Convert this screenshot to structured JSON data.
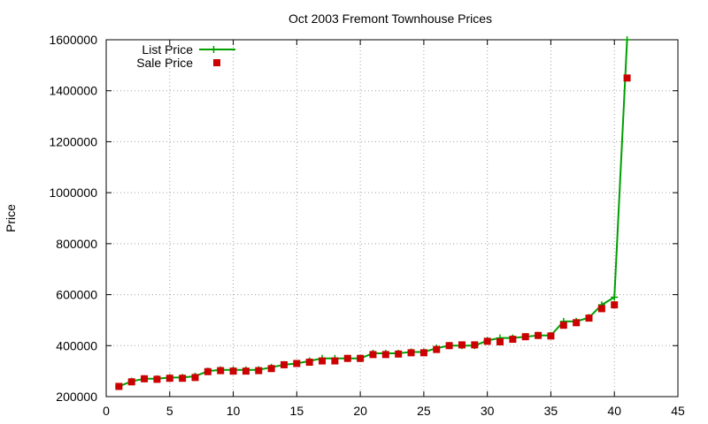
{
  "chart_data": {
    "type": "line",
    "title": "Oct 2003 Fremont Townhouse Prices",
    "xlabel": "",
    "ylabel": "Price",
    "xlim": [
      0,
      45
    ],
    "ylim": [
      200000,
      1600000
    ],
    "xticks": [
      0,
      5,
      10,
      15,
      20,
      25,
      30,
      35,
      40,
      45
    ],
    "yticks": [
      200000,
      400000,
      600000,
      800000,
      1000000,
      1200000,
      1400000,
      1600000
    ],
    "grid": true,
    "legend_position": "top-left",
    "x": [
      1,
      2,
      3,
      4,
      5,
      6,
      7,
      8,
      9,
      10,
      11,
      12,
      13,
      14,
      15,
      16,
      17,
      18,
      19,
      20,
      21,
      22,
      23,
      24,
      25,
      26,
      27,
      28,
      29,
      30,
      31,
      32,
      33,
      34,
      35,
      36,
      37,
      38,
      39,
      40,
      41
    ],
    "series": [
      {
        "name": "List Price",
        "style": "line-plus",
        "color": "#00a000",
        "values": [
          240000,
          260000,
          270000,
          270000,
          275000,
          275000,
          280000,
          300000,
          305000,
          305000,
          305000,
          305000,
          315000,
          325000,
          330000,
          340000,
          350000,
          350000,
          350000,
          350000,
          370000,
          370000,
          370000,
          375000,
          375000,
          390000,
          400000,
          400000,
          400000,
          420000,
          430000,
          430000,
          435000,
          440000,
          440000,
          495000,
          495000,
          510000,
          560000,
          590000,
          1600000
        ]
      },
      {
        "name": "Sale Price",
        "style": "square-points",
        "color": "#cc0000",
        "values": [
          240000,
          258000,
          270000,
          268000,
          272000,
          272000,
          275000,
          298000,
          302000,
          300000,
          300000,
          302000,
          310000,
          325000,
          330000,
          335000,
          340000,
          340000,
          350000,
          350000,
          365000,
          365000,
          367000,
          372000,
          372000,
          385000,
          400000,
          403000,
          403000,
          417000,
          415000,
          425000,
          435000,
          440000,
          438000,
          480000,
          490000,
          508000,
          545000,
          560000,
          1450000
        ]
      }
    ]
  }
}
